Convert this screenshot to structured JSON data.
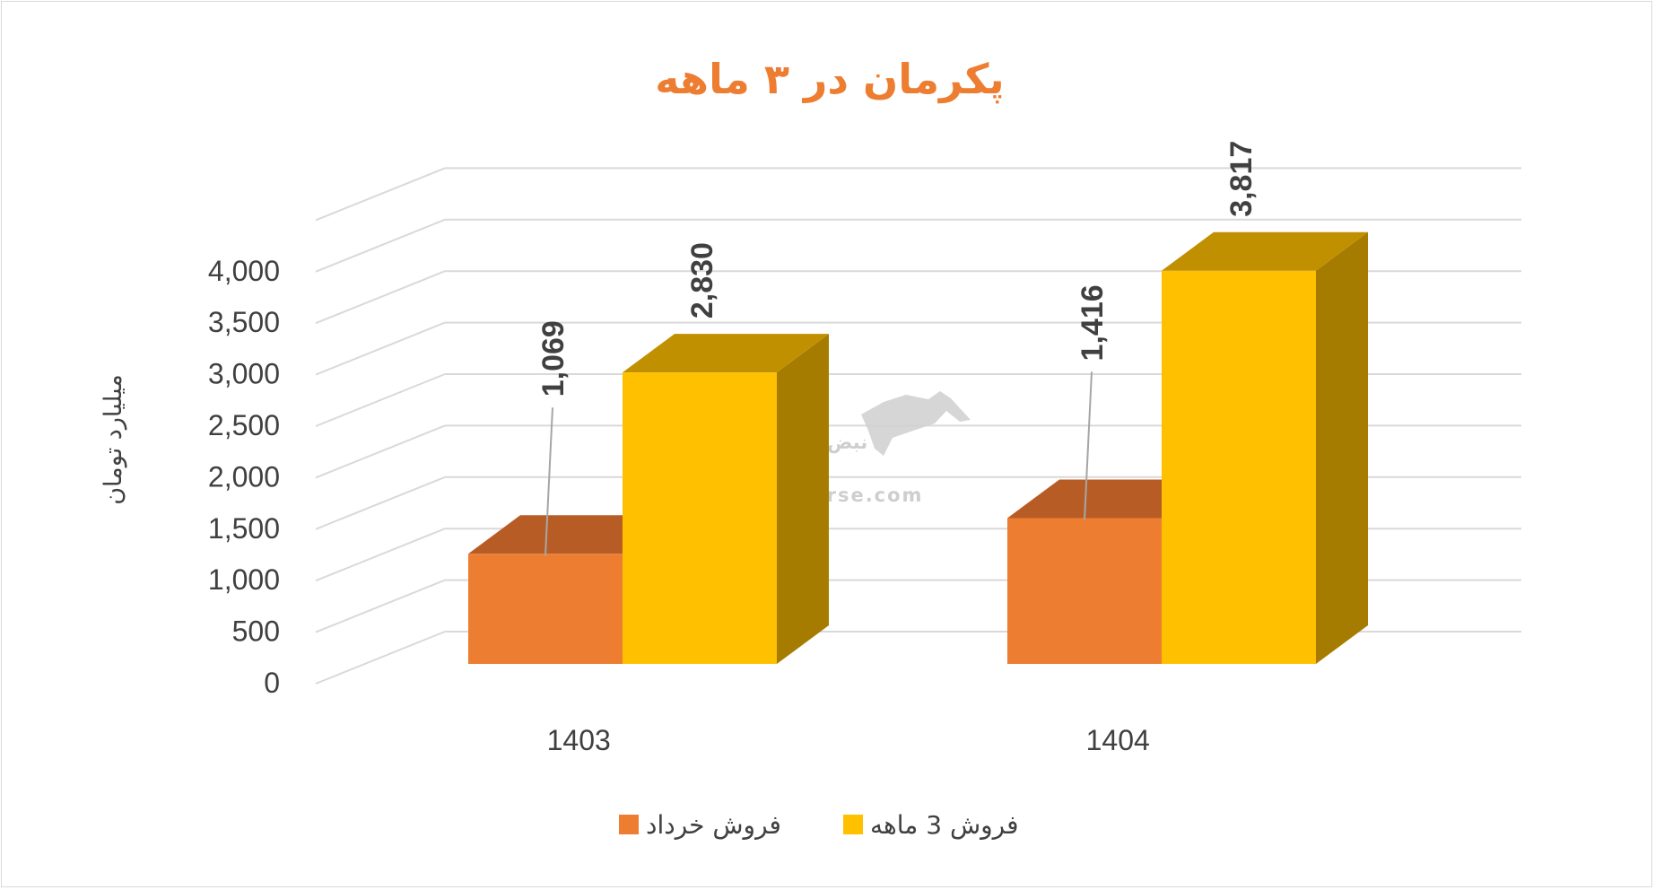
{
  "chart_data": {
    "type": "bar",
    "title": "پکرمان در ۳ ماهه",
    "ylabel": "میلیارد تومان",
    "xlabel": "",
    "categories": [
      "1403",
      "1404"
    ],
    "series": [
      {
        "name": "فروش خرداد",
        "values": [
          1069,
          1416
        ],
        "labels": [
          "1,069",
          "1,416"
        ],
        "color": "#ed7d31",
        "top_color": "#b85c26"
      },
      {
        "name": "فروش 3  ماهه",
        "values": [
          2830,
          3817
        ],
        "labels": [
          "2,830",
          "3,817"
        ],
        "color": "#ffc000",
        "top_color": "#c09000",
        "side_color": "#a67c00"
      }
    ],
    "yticks": [
      "0",
      "500",
      "1,000",
      "1,500",
      "2,000",
      "2,500",
      "3,000",
      "3,500",
      "4,000"
    ],
    "ylim": [
      0,
      4000
    ],
    "grid": true,
    "legend_position": "bottom",
    "style": "3d-column"
  },
  "watermark": {
    "text": "nabzebourse.com",
    "logo_text": "نبض بورس"
  }
}
